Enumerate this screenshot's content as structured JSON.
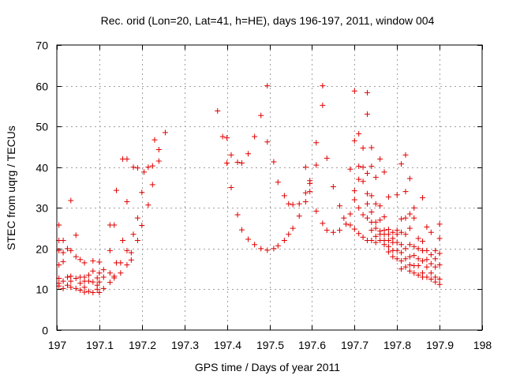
{
  "chart_data": {
    "type": "scatter",
    "title": "Rec. orid (Lon=20, Lat=41, h=HE), days 196-197, 2011, window 004",
    "xlabel": "GPS time / Days of year 2011",
    "ylabel": "STEC from uqrg / TECUs",
    "xlim": [
      197,
      198
    ],
    "ylim": [
      0,
      70
    ],
    "x_ticks": [
      197,
      197.1,
      197.2,
      197.3,
      197.4,
      197.5,
      197.6,
      197.7,
      197.8,
      197.9,
      198
    ],
    "x_tick_labels": [
      "197",
      "197.1",
      "197.2",
      "197.3",
      "197.4",
      "197.5",
      "197.6",
      "197.7",
      "197.8",
      "197.9",
      "198"
    ],
    "y_ticks": [
      0,
      10,
      20,
      30,
      40,
      50,
      60,
      70
    ],
    "y_tick_labels": [
      "0",
      "10",
      "20",
      "30",
      "40",
      "50",
      "60",
      "70"
    ],
    "grid": true,
    "marker": "+",
    "color": "#e00000",
    "series": [
      {
        "name": "STEC",
        "points": [
          [
            197.005,
            25.8
          ],
          [
            197.005,
            22.0
          ],
          [
            197.005,
            19.5
          ],
          [
            197.005,
            16.0
          ],
          [
            197.005,
            12.7
          ],
          [
            197.005,
            11.5
          ],
          [
            197.005,
            10.8
          ],
          [
            197.015,
            22.0
          ],
          [
            197.015,
            19.0
          ],
          [
            197.015,
            16.8
          ],
          [
            197.015,
            12.0
          ],
          [
            197.015,
            10.2
          ],
          [
            197.025,
            20.0
          ],
          [
            197.025,
            13.0
          ],
          [
            197.025,
            11.0
          ],
          [
            197.033,
            31.8
          ],
          [
            197.033,
            19.5
          ],
          [
            197.033,
            13.2
          ],
          [
            197.033,
            12.0
          ],
          [
            197.033,
            10.5
          ],
          [
            197.045,
            23.3
          ],
          [
            197.045,
            18.0
          ],
          [
            197.045,
            12.7
          ],
          [
            197.045,
            10.2
          ],
          [
            197.055,
            17.3
          ],
          [
            197.055,
            13.0
          ],
          [
            197.055,
            11.5
          ],
          [
            197.055,
            9.8
          ],
          [
            197.065,
            16.5
          ],
          [
            197.065,
            13.0
          ],
          [
            197.065,
            12.0
          ],
          [
            197.065,
            10.5
          ],
          [
            197.065,
            9.3
          ],
          [
            197.075,
            13.5
          ],
          [
            197.075,
            12.0
          ],
          [
            197.075,
            9.5
          ],
          [
            197.085,
            17.0
          ],
          [
            197.085,
            14.5
          ],
          [
            197.085,
            11.8
          ],
          [
            197.085,
            9.2
          ],
          [
            197.095,
            12.8
          ],
          [
            197.095,
            11.0
          ],
          [
            197.095,
            10.0
          ],
          [
            197.1,
            16.7
          ],
          [
            197.1,
            14.0
          ],
          [
            197.1,
            11.8
          ],
          [
            197.1,
            9.2
          ],
          [
            197.11,
            14.8
          ],
          [
            197.11,
            13.0
          ],
          [
            197.11,
            10.2
          ],
          [
            197.125,
            25.8
          ],
          [
            197.125,
            19.5
          ],
          [
            197.125,
            14.0
          ],
          [
            197.125,
            11.7
          ],
          [
            197.135,
            25.8
          ],
          [
            197.135,
            13.2
          ],
          [
            197.135,
            12.8
          ],
          [
            197.14,
            34.3
          ],
          [
            197.14,
            16.5
          ],
          [
            197.15,
            16.5
          ],
          [
            197.15,
            14.0
          ],
          [
            197.155,
            42.0
          ],
          [
            197.155,
            22.0
          ],
          [
            197.165,
            42.0
          ],
          [
            197.165,
            31.5
          ],
          [
            197.165,
            19.5
          ],
          [
            197.165,
            16.0
          ],
          [
            197.175,
            19.0
          ],
          [
            197.175,
            17.2
          ],
          [
            197.18,
            40.0
          ],
          [
            197.18,
            23.5
          ],
          [
            197.19,
            39.8
          ],
          [
            197.19,
            27.5
          ],
          [
            197.19,
            22.0
          ],
          [
            197.2,
            33.8
          ],
          [
            197.2,
            25.7
          ],
          [
            197.205,
            38.8
          ],
          [
            197.215,
            40.0
          ],
          [
            197.215,
            30.7
          ],
          [
            197.225,
            40.3
          ],
          [
            197.225,
            35.7
          ],
          [
            197.23,
            46.7
          ],
          [
            197.24,
            44.3
          ],
          [
            197.24,
            41.5
          ],
          [
            197.255,
            48.5
          ],
          [
            197.378,
            53.8
          ],
          [
            197.39,
            47.5
          ],
          [
            197.4,
            47.2
          ],
          [
            197.4,
            41.0
          ],
          [
            197.41,
            43.0
          ],
          [
            197.41,
            35.0
          ],
          [
            197.425,
            41.2
          ],
          [
            197.425,
            28.3
          ],
          [
            197.435,
            41.0
          ],
          [
            197.435,
            24.6
          ],
          [
            197.45,
            43.3
          ],
          [
            197.45,
            22.3
          ],
          [
            197.465,
            47.5
          ],
          [
            197.465,
            21.0
          ],
          [
            197.48,
            52.7
          ],
          [
            197.48,
            20.0
          ],
          [
            197.495,
            60.0
          ],
          [
            197.495,
            46.2
          ],
          [
            197.495,
            19.6
          ],
          [
            197.51,
            41.3
          ],
          [
            197.51,
            20.0
          ],
          [
            197.52,
            36.3
          ],
          [
            197.52,
            20.7
          ],
          [
            197.535,
            33.0
          ],
          [
            197.535,
            22.0
          ],
          [
            197.545,
            31.0
          ],
          [
            197.545,
            23.5
          ],
          [
            197.555,
            30.8
          ],
          [
            197.555,
            25.0
          ],
          [
            197.57,
            31.0
          ],
          [
            197.57,
            28.0
          ],
          [
            197.585,
            40.0
          ],
          [
            197.585,
            33.7
          ],
          [
            197.585,
            31.5
          ],
          [
            197.595,
            36.7
          ],
          [
            197.595,
            36.0
          ],
          [
            197.595,
            34.0
          ],
          [
            197.61,
            46.0
          ],
          [
            197.61,
            40.5
          ],
          [
            197.61,
            29.2
          ],
          [
            197.625,
            60.0
          ],
          [
            197.625,
            55.2
          ],
          [
            197.625,
            26.2
          ],
          [
            197.635,
            42.2
          ],
          [
            197.635,
            24.5
          ],
          [
            197.65,
            35.2
          ],
          [
            197.65,
            24.0
          ],
          [
            197.665,
            30.5
          ],
          [
            197.665,
            24.5
          ],
          [
            197.675,
            27.5
          ],
          [
            197.68,
            26.0
          ],
          [
            197.69,
            39.5
          ],
          [
            197.69,
            28.5
          ],
          [
            197.69,
            25.8
          ],
          [
            197.7,
            58.7
          ],
          [
            197.7,
            46.5
          ],
          [
            197.7,
            34.2
          ],
          [
            197.7,
            32.0
          ],
          [
            197.7,
            24.8
          ],
          [
            197.71,
            48.2
          ],
          [
            197.71,
            40.2
          ],
          [
            197.71,
            37.0
          ],
          [
            197.71,
            30.0
          ],
          [
            197.71,
            23.7
          ],
          [
            197.72,
            44.7
          ],
          [
            197.72,
            40.0
          ],
          [
            197.72,
            36.5
          ],
          [
            197.72,
            28.3
          ],
          [
            197.72,
            22.8
          ],
          [
            197.73,
            58.3
          ],
          [
            197.73,
            53.0
          ],
          [
            197.73,
            38.5
          ],
          [
            197.73,
            33.5
          ],
          [
            197.73,
            31.0
          ],
          [
            197.73,
            27.5
          ],
          [
            197.73,
            22.0
          ],
          [
            197.74,
            44.8
          ],
          [
            197.74,
            40.2
          ],
          [
            197.74,
            33.0
          ],
          [
            197.74,
            29.0
          ],
          [
            197.74,
            26.5
          ],
          [
            197.74,
            24.5
          ],
          [
            197.74,
            22.0
          ],
          [
            197.75,
            37.5
          ],
          [
            197.75,
            31.0
          ],
          [
            197.75,
            26.5
          ],
          [
            197.75,
            25.0
          ],
          [
            197.75,
            23.0
          ],
          [
            197.75,
            21.5
          ],
          [
            197.76,
            42.0
          ],
          [
            197.76,
            30.5
          ],
          [
            197.76,
            27.0
          ],
          [
            197.76,
            24.3
          ],
          [
            197.76,
            23.5
          ],
          [
            197.76,
            22.0
          ],
          [
            197.77,
            38.8
          ],
          [
            197.77,
            27.8
          ],
          [
            197.77,
            24.5
          ],
          [
            197.77,
            23.5
          ],
          [
            197.77,
            22.0
          ],
          [
            197.77,
            21.0
          ],
          [
            197.78,
            32.7
          ],
          [
            197.78,
            24.7
          ],
          [
            197.78,
            23.5
          ],
          [
            197.78,
            22.0
          ],
          [
            197.78,
            20.5
          ],
          [
            197.78,
            19.2
          ],
          [
            197.79,
            24.0
          ],
          [
            197.79,
            22.5
          ],
          [
            197.79,
            21.5
          ],
          [
            197.79,
            19.5
          ],
          [
            197.79,
            18.0
          ],
          [
            197.8,
            33.2
          ],
          [
            197.8,
            24.5
          ],
          [
            197.8,
            23.5
          ],
          [
            197.8,
            21.5
          ],
          [
            197.8,
            19.5
          ],
          [
            197.8,
            17.5
          ],
          [
            197.81,
            40.8
          ],
          [
            197.81,
            27.3
          ],
          [
            197.81,
            24.0
          ],
          [
            197.81,
            21.0
          ],
          [
            197.81,
            19.0
          ],
          [
            197.81,
            17.0
          ],
          [
            197.81,
            15.0
          ],
          [
            197.82,
            43.0
          ],
          [
            197.82,
            34.0
          ],
          [
            197.82,
            27.5
          ],
          [
            197.82,
            23.5
          ],
          [
            197.82,
            20.0
          ],
          [
            197.82,
            17.5
          ],
          [
            197.82,
            15.5
          ],
          [
            197.83,
            37.2
          ],
          [
            197.83,
            28.5
          ],
          [
            197.83,
            25.0
          ],
          [
            197.83,
            21.0
          ],
          [
            197.83,
            18.0
          ],
          [
            197.83,
            16.0
          ],
          [
            197.83,
            14.5
          ],
          [
            197.84,
            30.0
          ],
          [
            197.84,
            27.5
          ],
          [
            197.84,
            20.5
          ],
          [
            197.84,
            18.3
          ],
          [
            197.84,
            15.8
          ],
          [
            197.84,
            14.0
          ],
          [
            197.85,
            22.5
          ],
          [
            197.85,
            20.0
          ],
          [
            197.85,
            17.5
          ],
          [
            197.85,
            15.8
          ],
          [
            197.85,
            13.5
          ],
          [
            197.86,
            32.5
          ],
          [
            197.86,
            21.8
          ],
          [
            197.86,
            19.5
          ],
          [
            197.86,
            17.0
          ],
          [
            197.86,
            14.0
          ],
          [
            197.86,
            13.0
          ],
          [
            197.87,
            25.3
          ],
          [
            197.87,
            19.5
          ],
          [
            197.87,
            17.3
          ],
          [
            197.87,
            15.5
          ],
          [
            197.87,
            13.0
          ],
          [
            197.88,
            24.0
          ],
          [
            197.88,
            18.5
          ],
          [
            197.88,
            16.3
          ],
          [
            197.88,
            14.0
          ],
          [
            197.88,
            12.5
          ],
          [
            197.89,
            19.5
          ],
          [
            197.89,
            17.5
          ],
          [
            197.89,
            15.5
          ],
          [
            197.89,
            13.0
          ],
          [
            197.89,
            11.8
          ],
          [
            197.9,
            26.0
          ],
          [
            197.9,
            22.5
          ],
          [
            197.9,
            18.8
          ],
          [
            197.9,
            16.0
          ],
          [
            197.9,
            12.5
          ],
          [
            197.9,
            11.2
          ]
        ]
      }
    ]
  }
}
